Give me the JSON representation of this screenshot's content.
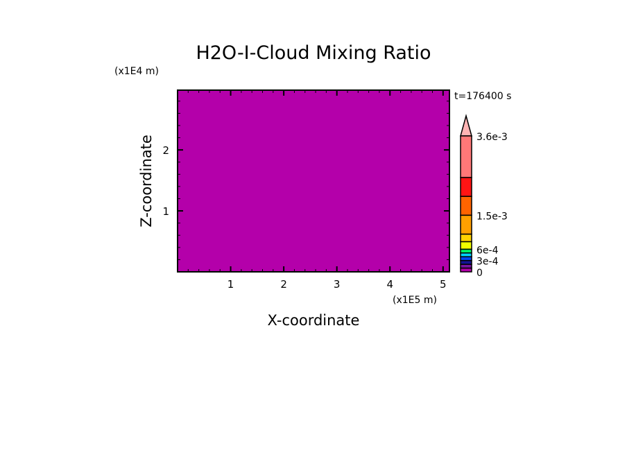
{
  "chart_data": {
    "type": "heatmap",
    "title": "H2O-I-Cloud Mixing Ratio",
    "xlabel": "X-coordinate",
    "ylabel": "Z-coordinate",
    "x_unit": "(x1E5 m)",
    "y_unit": "(x1E4 m)",
    "time_label": "t=176400 s",
    "xlim": [
      0,
      5.12
    ],
    "ylim": [
      0,
      2.98
    ],
    "x_ticks": [
      1,
      2,
      3,
      4,
      5
    ],
    "y_ticks": [
      1,
      2
    ],
    "x_tick_labels": [
      "1",
      "2",
      "3",
      "4",
      "5"
    ],
    "y_tick_labels": [
      "1",
      "2"
    ],
    "minor_tick_step": 0.2,
    "field": "uniform",
    "field_level_index": 0,
    "colorbar": {
      "levels": [
        0,
        0.0001,
        0.0002,
        0.0003,
        0.0004,
        0.0005,
        0.0006,
        0.0008,
        0.001,
        0.0015,
        0.002,
        0.0025,
        0.0036
      ],
      "colors": [
        "#b400aa",
        "#7814a0",
        "#141496",
        "#0046f0",
        "#00d2ff",
        "#00f064",
        "#f0ff00",
        "#ffd200",
        "#ffa000",
        "#ff6400",
        "#ff1414",
        "#ff7878"
      ],
      "extend_max_color": "#ffb4b4",
      "tick_values": [
        0,
        0.0003,
        0.0006,
        0.0015,
        0.0036
      ],
      "tick_labels": [
        "0",
        "3e-4",
        "6e-4",
        "1.5e-3",
        "3.6e-3"
      ],
      "extend": "max"
    }
  }
}
